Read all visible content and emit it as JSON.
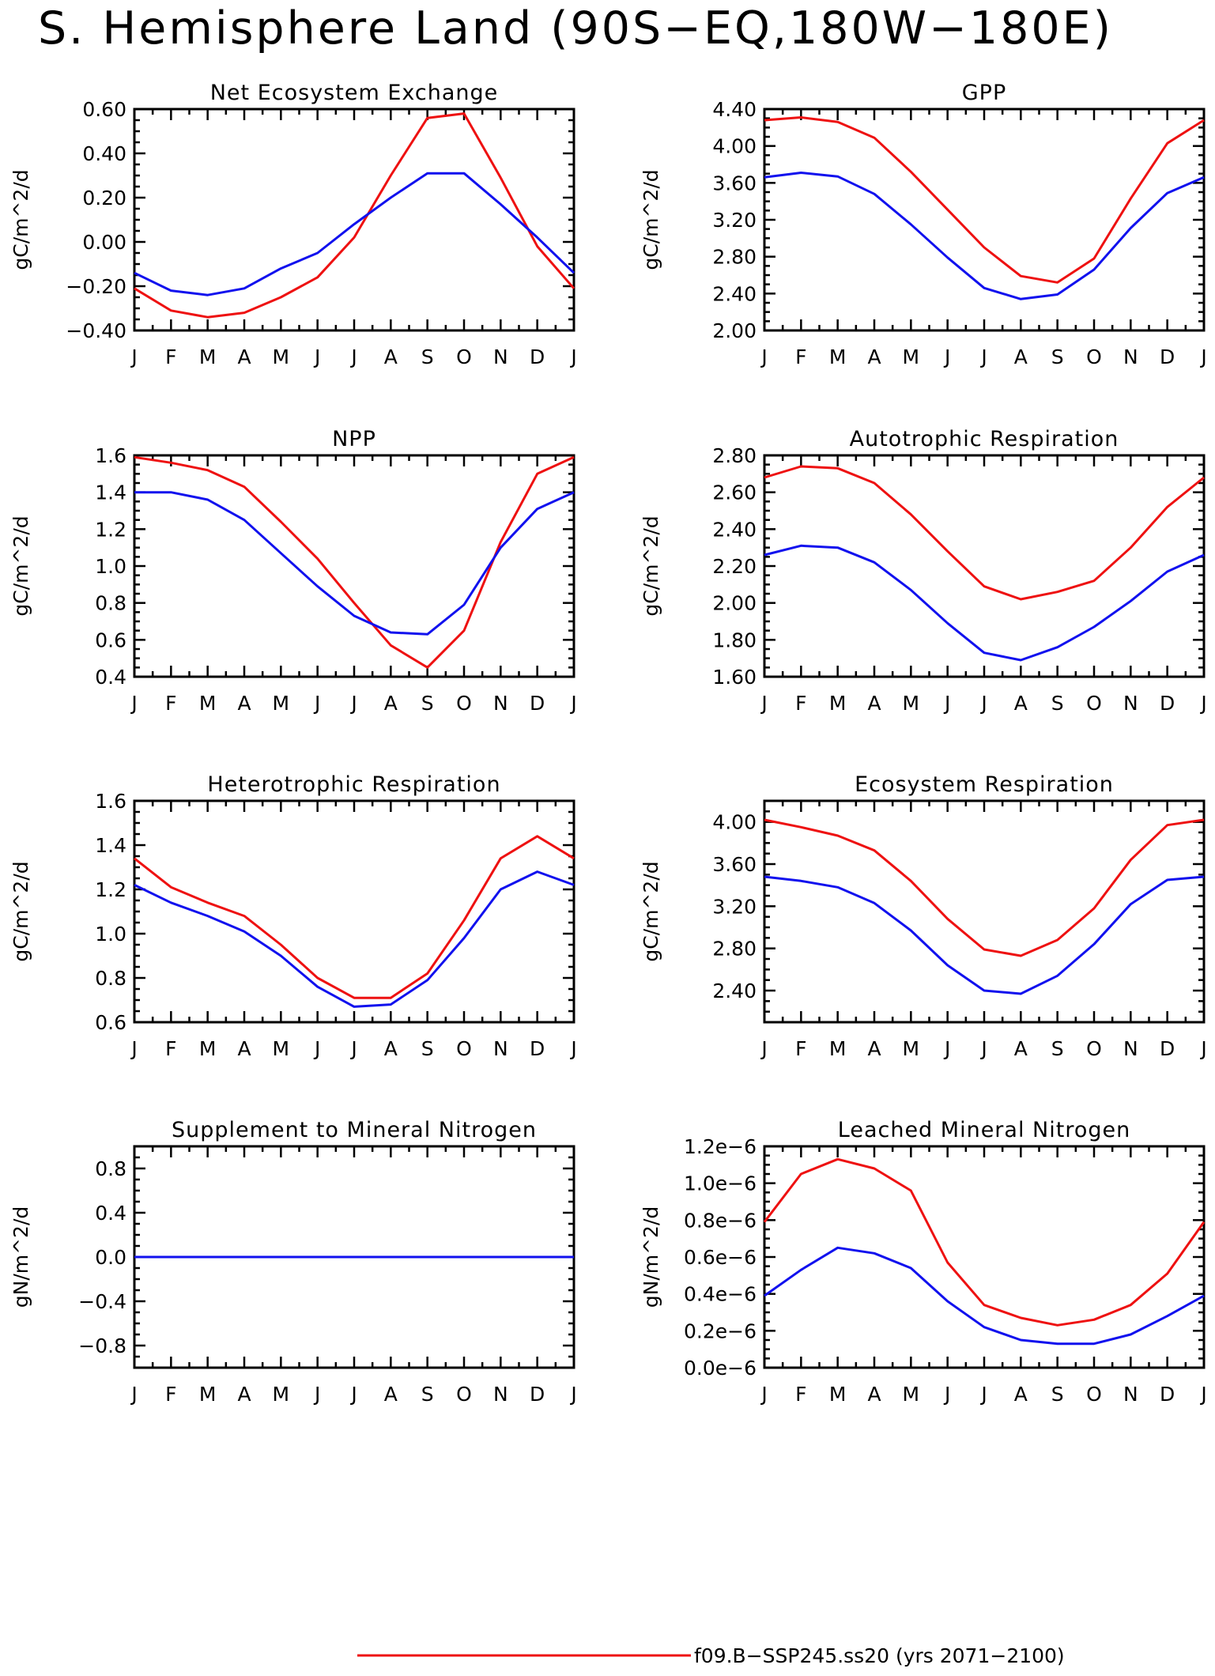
{
  "title": "S. Hemisphere Land (90S−EQ,180W−180E)",
  "colors": {
    "series_red": "#ee1111",
    "series_blue": "#1111ee",
    "axis": "#000000"
  },
  "legend": {
    "entries": [
      {
        "label": "f09.B−SSP245.ss20 (yrs 2071−2100)",
        "color": "#ee1111"
      }
    ]
  },
  "chart_data": [
    {
      "type": "line",
      "title": "Net Ecosystem Exchange",
      "ylabel": "gC/m^2/d",
      "categories": [
        "J",
        "F",
        "M",
        "A",
        "M",
        "J",
        "J",
        "A",
        "S",
        "O",
        "N",
        "D",
        "J"
      ],
      "ylim": [
        -0.4,
        0.6
      ],
      "yticks": [
        -0.4,
        -0.2,
        0.0,
        0.2,
        0.4,
        0.6
      ],
      "ytick_labels": [
        "−0.40",
        "−0.20",
        "0.00",
        "0.20",
        "0.40",
        "0.60"
      ],
      "series": [
        {
          "color": "#ee1111",
          "values": [
            -0.21,
            -0.31,
            -0.34,
            -0.32,
            -0.25,
            -0.16,
            0.02,
            0.3,
            0.56,
            0.58,
            0.29,
            -0.02,
            -0.21
          ]
        },
        {
          "color": "#1111ee",
          "values": [
            -0.14,
            -0.22,
            -0.24,
            -0.21,
            -0.12,
            -0.05,
            0.08,
            0.2,
            0.31,
            0.31,
            0.17,
            0.02,
            -0.14
          ]
        }
      ]
    },
    {
      "type": "line",
      "title": "GPP",
      "ylabel": "gC/m^2/d",
      "categories": [
        "J",
        "F",
        "M",
        "A",
        "M",
        "J",
        "J",
        "A",
        "S",
        "O",
        "N",
        "D",
        "J"
      ],
      "ylim": [
        2.0,
        4.4
      ],
      "yticks": [
        2.0,
        2.4,
        2.8,
        3.2,
        3.6,
        4.0,
        4.4
      ],
      "ytick_labels": [
        "2.00",
        "2.40",
        "2.80",
        "3.20",
        "3.60",
        "4.00",
        "4.40"
      ],
      "series": [
        {
          "color": "#ee1111",
          "values": [
            4.28,
            4.31,
            4.26,
            4.09,
            3.72,
            3.31,
            2.9,
            2.59,
            2.52,
            2.78,
            3.43,
            4.03,
            4.28
          ]
        },
        {
          "color": "#1111ee",
          "values": [
            3.66,
            3.71,
            3.67,
            3.48,
            3.15,
            2.79,
            2.46,
            2.34,
            2.39,
            2.66,
            3.11,
            3.49,
            3.66
          ]
        }
      ]
    },
    {
      "type": "line",
      "title": "NPP",
      "ylabel": "gC/m^2/d",
      "categories": [
        "J",
        "F",
        "M",
        "A",
        "M",
        "J",
        "J",
        "A",
        "S",
        "O",
        "N",
        "D",
        "J"
      ],
      "ylim": [
        0.4,
        1.6
      ],
      "yticks": [
        0.4,
        0.6,
        0.8,
        1.0,
        1.2,
        1.4,
        1.6
      ],
      "ytick_labels": [
        "0.4",
        "0.6",
        "0.8",
        "1.0",
        "1.2",
        "1.4",
        "1.6"
      ],
      "series": [
        {
          "color": "#ee1111",
          "values": [
            1.59,
            1.56,
            1.52,
            1.43,
            1.24,
            1.04,
            0.8,
            0.57,
            0.45,
            0.65,
            1.13,
            1.5,
            1.59
          ]
        },
        {
          "color": "#1111ee",
          "values": [
            1.4,
            1.4,
            1.36,
            1.25,
            1.07,
            0.89,
            0.73,
            0.64,
            0.63,
            0.79,
            1.1,
            1.31,
            1.4
          ]
        }
      ]
    },
    {
      "type": "line",
      "title": "Autotrophic Respiration",
      "ylabel": "gC/m^2/d",
      "categories": [
        "J",
        "F",
        "M",
        "A",
        "M",
        "J",
        "J",
        "A",
        "S",
        "O",
        "N",
        "D",
        "J"
      ],
      "ylim": [
        1.6,
        2.8
      ],
      "yticks": [
        1.6,
        1.8,
        2.0,
        2.2,
        2.4,
        2.6,
        2.8
      ],
      "ytick_labels": [
        "1.60",
        "1.80",
        "2.00",
        "2.20",
        "2.40",
        "2.60",
        "2.80"
      ],
      "series": [
        {
          "color": "#ee1111",
          "values": [
            2.68,
            2.74,
            2.73,
            2.65,
            2.48,
            2.28,
            2.09,
            2.02,
            2.06,
            2.12,
            2.3,
            2.52,
            2.68
          ]
        },
        {
          "color": "#1111ee",
          "values": [
            2.26,
            2.31,
            2.3,
            2.22,
            2.07,
            1.89,
            1.73,
            1.69,
            1.76,
            1.87,
            2.01,
            2.17,
            2.26
          ]
        }
      ]
    },
    {
      "type": "line",
      "title": "Heterotrophic Respiration",
      "ylabel": "gC/m^2/d",
      "categories": [
        "J",
        "F",
        "M",
        "A",
        "M",
        "J",
        "J",
        "A",
        "S",
        "O",
        "N",
        "D",
        "J"
      ],
      "ylim": [
        0.6,
        1.6
      ],
      "yticks": [
        0.6,
        0.8,
        1.0,
        1.2,
        1.4,
        1.6
      ],
      "ytick_labels": [
        "0.6",
        "0.8",
        "1.0",
        "1.2",
        "1.4",
        "1.6"
      ],
      "series": [
        {
          "color": "#ee1111",
          "values": [
            1.34,
            1.21,
            1.14,
            1.08,
            0.95,
            0.8,
            0.71,
            0.71,
            0.82,
            1.06,
            1.34,
            1.44,
            1.34
          ]
        },
        {
          "color": "#1111ee",
          "values": [
            1.22,
            1.14,
            1.08,
            1.01,
            0.9,
            0.76,
            0.67,
            0.68,
            0.79,
            0.98,
            1.2,
            1.28,
            1.22
          ]
        }
      ]
    },
    {
      "type": "line",
      "title": "Ecosystem Respiration",
      "ylabel": "gC/m^2/d",
      "categories": [
        "J",
        "F",
        "M",
        "A",
        "M",
        "J",
        "J",
        "A",
        "S",
        "O",
        "N",
        "D",
        "J"
      ],
      "ylim": [
        2.1,
        4.2
      ],
      "yticks": [
        2.4,
        2.8,
        3.2,
        3.6,
        4.0
      ],
      "ytick_labels": [
        "2.40",
        "2.80",
        "3.20",
        "3.60",
        "4.00"
      ],
      "series": [
        {
          "color": "#ee1111",
          "values": [
            4.02,
            3.95,
            3.87,
            3.73,
            3.44,
            3.08,
            2.79,
            2.73,
            2.88,
            3.18,
            3.64,
            3.97,
            4.02
          ]
        },
        {
          "color": "#1111ee",
          "values": [
            3.48,
            3.44,
            3.38,
            3.23,
            2.97,
            2.64,
            2.4,
            2.37,
            2.54,
            2.84,
            3.22,
            3.45,
            3.48
          ]
        }
      ]
    },
    {
      "type": "line",
      "title": "Supplement to Mineral Nitrogen",
      "ylabel": "gN/m^2/d",
      "categories": [
        "J",
        "F",
        "M",
        "A",
        "M",
        "J",
        "J",
        "A",
        "S",
        "O",
        "N",
        "D",
        "J"
      ],
      "ylim": [
        -1.0,
        1.0
      ],
      "yticks": [
        -0.8,
        -0.4,
        0.0,
        0.4,
        0.8
      ],
      "ytick_labels": [
        "−0.8",
        "−0.4",
        "0.0",
        "0.4",
        "0.8"
      ],
      "series": [
        {
          "color": "#ee1111",
          "values": [
            0,
            0,
            0,
            0,
            0,
            0,
            0,
            0,
            0,
            0,
            0,
            0,
            0
          ]
        },
        {
          "color": "#1111ee",
          "values": [
            0,
            0,
            0,
            0,
            0,
            0,
            0,
            0,
            0,
            0,
            0,
            0,
            0
          ]
        }
      ]
    },
    {
      "type": "line",
      "title": "Leached Mineral Nitrogen",
      "ylabel": "gN/m^2/d",
      "categories": [
        "J",
        "F",
        "M",
        "A",
        "M",
        "J",
        "J",
        "A",
        "S",
        "O",
        "N",
        "D",
        "J"
      ],
      "ylim": [
        0.0,
        1.2e-06
      ],
      "yticks": [
        0.0,
        2e-07,
        4e-07,
        6e-07,
        8e-07,
        1e-06,
        1.2e-06
      ],
      "ytick_labels": [
        "0.0e−6",
        "0.2e−6",
        "0.4e−6",
        "0.6e−6",
        "0.8e−6",
        "1.0e−6",
        "1.2e−6"
      ],
      "series": [
        {
          "color": "#ee1111",
          "values": [
            7.9e-07,
            1.05e-06,
            1.13e-06,
            1.08e-06,
            9.6e-07,
            5.7e-07,
            3.4e-07,
            2.7e-07,
            2.3e-07,
            2.6e-07,
            3.4e-07,
            5.1e-07,
            7.9e-07
          ]
        },
        {
          "color": "#1111ee",
          "values": [
            3.9e-07,
            5.3e-07,
            6.5e-07,
            6.2e-07,
            5.4e-07,
            3.6e-07,
            2.2e-07,
            1.5e-07,
            1.3e-07,
            1.3e-07,
            1.8e-07,
            2.8e-07,
            3.9e-07
          ]
        }
      ]
    }
  ]
}
